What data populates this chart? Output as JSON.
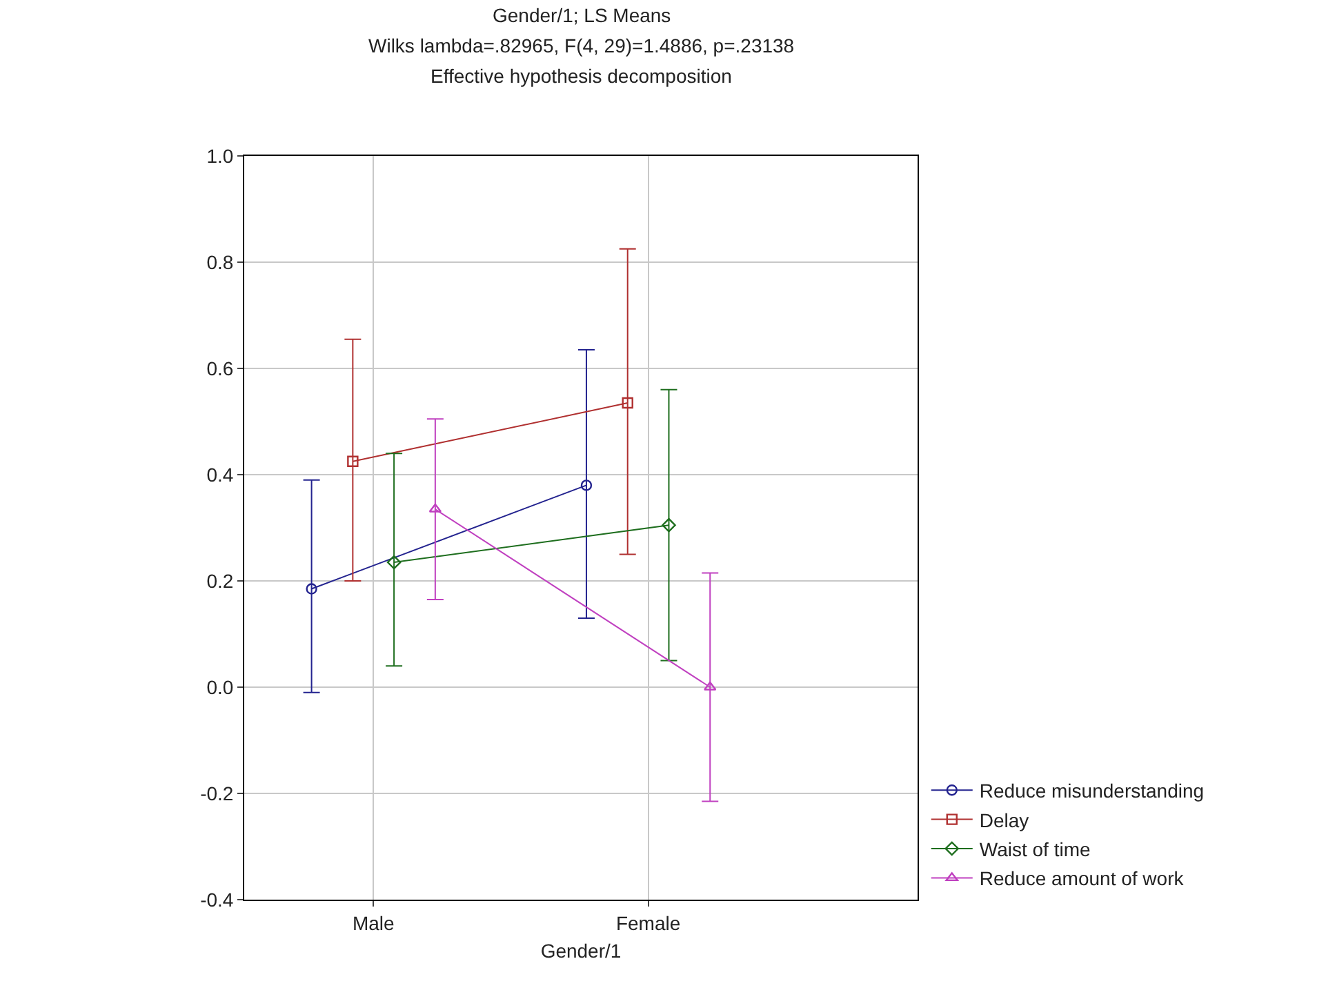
{
  "chart_data": {
    "type": "line",
    "title": "Gender/1; LS Means",
    "subtitle": "Wilks lambda=.82965, F(4, 29)=1.4886, p=.23138",
    "annotations": [
      "Effective hypothesis decomposition"
    ],
    "xlabel": "Gender/1",
    "categories": [
      "Male",
      "Female"
    ],
    "ylim": [
      -0.4,
      1.0
    ],
    "yticks": [
      {
        "value": -0.4,
        "label": "-0.4"
      },
      {
        "value": -0.2,
        "label": "-0.2"
      },
      {
        "value": 0,
        "label": "0.0"
      },
      {
        "value": 0.2,
        "label": "0.2"
      },
      {
        "value": 0.4,
        "label": "0.4"
      },
      {
        "value": 0.6,
        "label": "0.6"
      },
      {
        "value": 0.8,
        "label": "0.8"
      },
      {
        "value": 1.0,
        "label": "1.0"
      }
    ],
    "grid": true,
    "legend": "bottom right",
    "series": [
      {
        "name": "Reduce misunderstanding",
        "color": "#23238f",
        "marker": "circle",
        "values": [
          0.185,
          0.38
        ],
        "errors": [
          [
            -0.01,
            0.39
          ],
          [
            0.13,
            0.635
          ]
        ]
      },
      {
        "name": "Delay",
        "color": "#b03030",
        "marker": "square",
        "values": [
          0.425,
          0.535
        ],
        "errors": [
          [
            0.2,
            0.655
          ],
          [
            0.25,
            0.825
          ]
        ]
      },
      {
        "name": "Waist of time",
        "color": "#1e6e1e",
        "marker": "diamond",
        "values": [
          0.235,
          0.305
        ],
        "errors": [
          [
            0.04,
            0.44
          ],
          [
            0.05,
            0.56
          ]
        ]
      },
      {
        "name": "Reduce amount of work",
        "color": "#c040c0",
        "marker": "triangle",
        "values": [
          0.335,
          0.0
        ],
        "errors": [
          [
            0.165,
            0.505
          ],
          [
            -0.215,
            0.215
          ]
        ]
      }
    ]
  }
}
